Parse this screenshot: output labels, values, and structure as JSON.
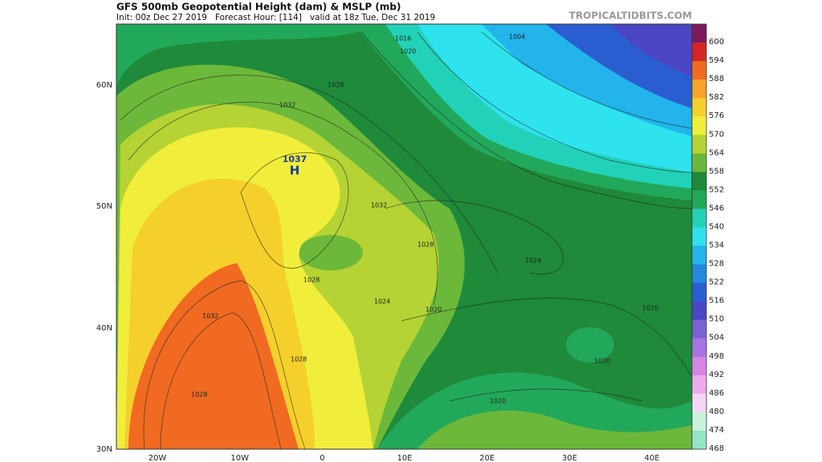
{
  "header": {
    "title": "GFS 500mb Geopotential Height (dam) & MSLP (mb)",
    "subtitle": "Init: 00z Dec 27 2019   Forecast Hour: [114]   valid at 18z Tue, Dec 31 2019",
    "source": "TROPICALTIDBITS.COM"
  },
  "map": {
    "lat_labels": [
      "60N",
      "50N",
      "40N",
      "30N"
    ],
    "lon_labels": [
      "20W",
      "10W",
      "0",
      "10E",
      "20E",
      "30E",
      "40E"
    ],
    "high_label": "H",
    "high_pressure": "1037",
    "contour_labels": [
      "1032",
      "1028",
      "1032",
      "1028",
      "1028",
      "1032",
      "1028",
      "1028",
      "1024",
      "1020",
      "1020",
      "1020",
      "1020",
      "1024",
      "1016",
      "1020",
      "1004"
    ]
  },
  "colorbar": {
    "levels": [
      600,
      594,
      588,
      582,
      576,
      570,
      564,
      558,
      552,
      546,
      540,
      534,
      528,
      522,
      516,
      510,
      504,
      498,
      492,
      486,
      480,
      474,
      468
    ],
    "colors": [
      "#7a1a5c",
      "#d42424",
      "#f06a22",
      "#f7a42a",
      "#f5cf2c",
      "#f0ee3a",
      "#b5d334",
      "#6cb83a",
      "#1f8a3a",
      "#22a85a",
      "#22d2b8",
      "#2ee2ee",
      "#22b4ea",
      "#2488dc",
      "#2a5ed0",
      "#4a46c4",
      "#7a62d2",
      "#a474e0",
      "#d486e2",
      "#ecacec",
      "#f6d6f6",
      "#c8f2dc",
      "#96e4c6"
    ]
  }
}
